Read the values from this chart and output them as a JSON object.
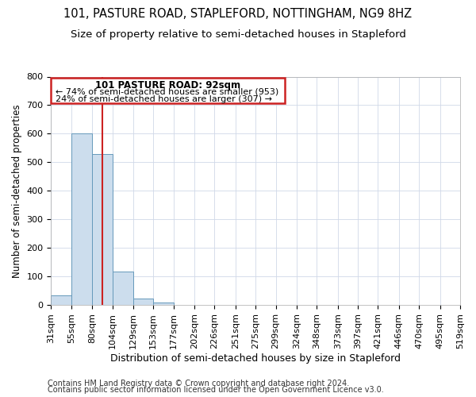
{
  "title": "101, PASTURE ROAD, STAPLEFORD, NOTTINGHAM, NG9 8HZ",
  "subtitle": "Size of property relative to semi-detached houses in Stapleford",
  "xlabel": "Distribution of semi-detached houses by size in Stapleford",
  "ylabel": "Number of semi-detached properties",
  "footer_line1": "Contains HM Land Registry data © Crown copyright and database right 2024.",
  "footer_line2": "Contains public sector information licensed under the Open Government Licence v3.0.",
  "annotation_line1": "101 PASTURE ROAD: 92sqm",
  "annotation_line2": "← 74% of semi-detached houses are smaller (953)",
  "annotation_line3": "24% of semi-detached houses are larger (307) →",
  "property_size": 92,
  "bar_edges": [
    31,
    55,
    80,
    104,
    129,
    153,
    177,
    202,
    226,
    251,
    275,
    299,
    324,
    348,
    373,
    397,
    421,
    446,
    470,
    495,
    519
  ],
  "bar_heights": [
    35,
    600,
    528,
    118,
    22,
    8,
    0,
    0,
    0,
    0,
    0,
    0,
    0,
    0,
    0,
    0,
    0,
    0,
    0,
    0
  ],
  "bar_color": "#ccdded",
  "bar_edge_color": "#6699bb",
  "vline_color": "#cc2222",
  "vline_x": 92,
  "annotation_box_color": "#cc2222",
  "ylim": [
    0,
    800
  ],
  "yticks": [
    0,
    100,
    200,
    300,
    400,
    500,
    600,
    700,
    800
  ],
  "grid_color": "#d0d8e8",
  "background_color": "#ffffff",
  "title_fontsize": 10.5,
  "subtitle_fontsize": 9.5,
  "xlabel_fontsize": 9,
  "ylabel_fontsize": 8.5,
  "tick_fontsize": 8,
  "annotation_fontsize": 8.5,
  "footer_fontsize": 7
}
